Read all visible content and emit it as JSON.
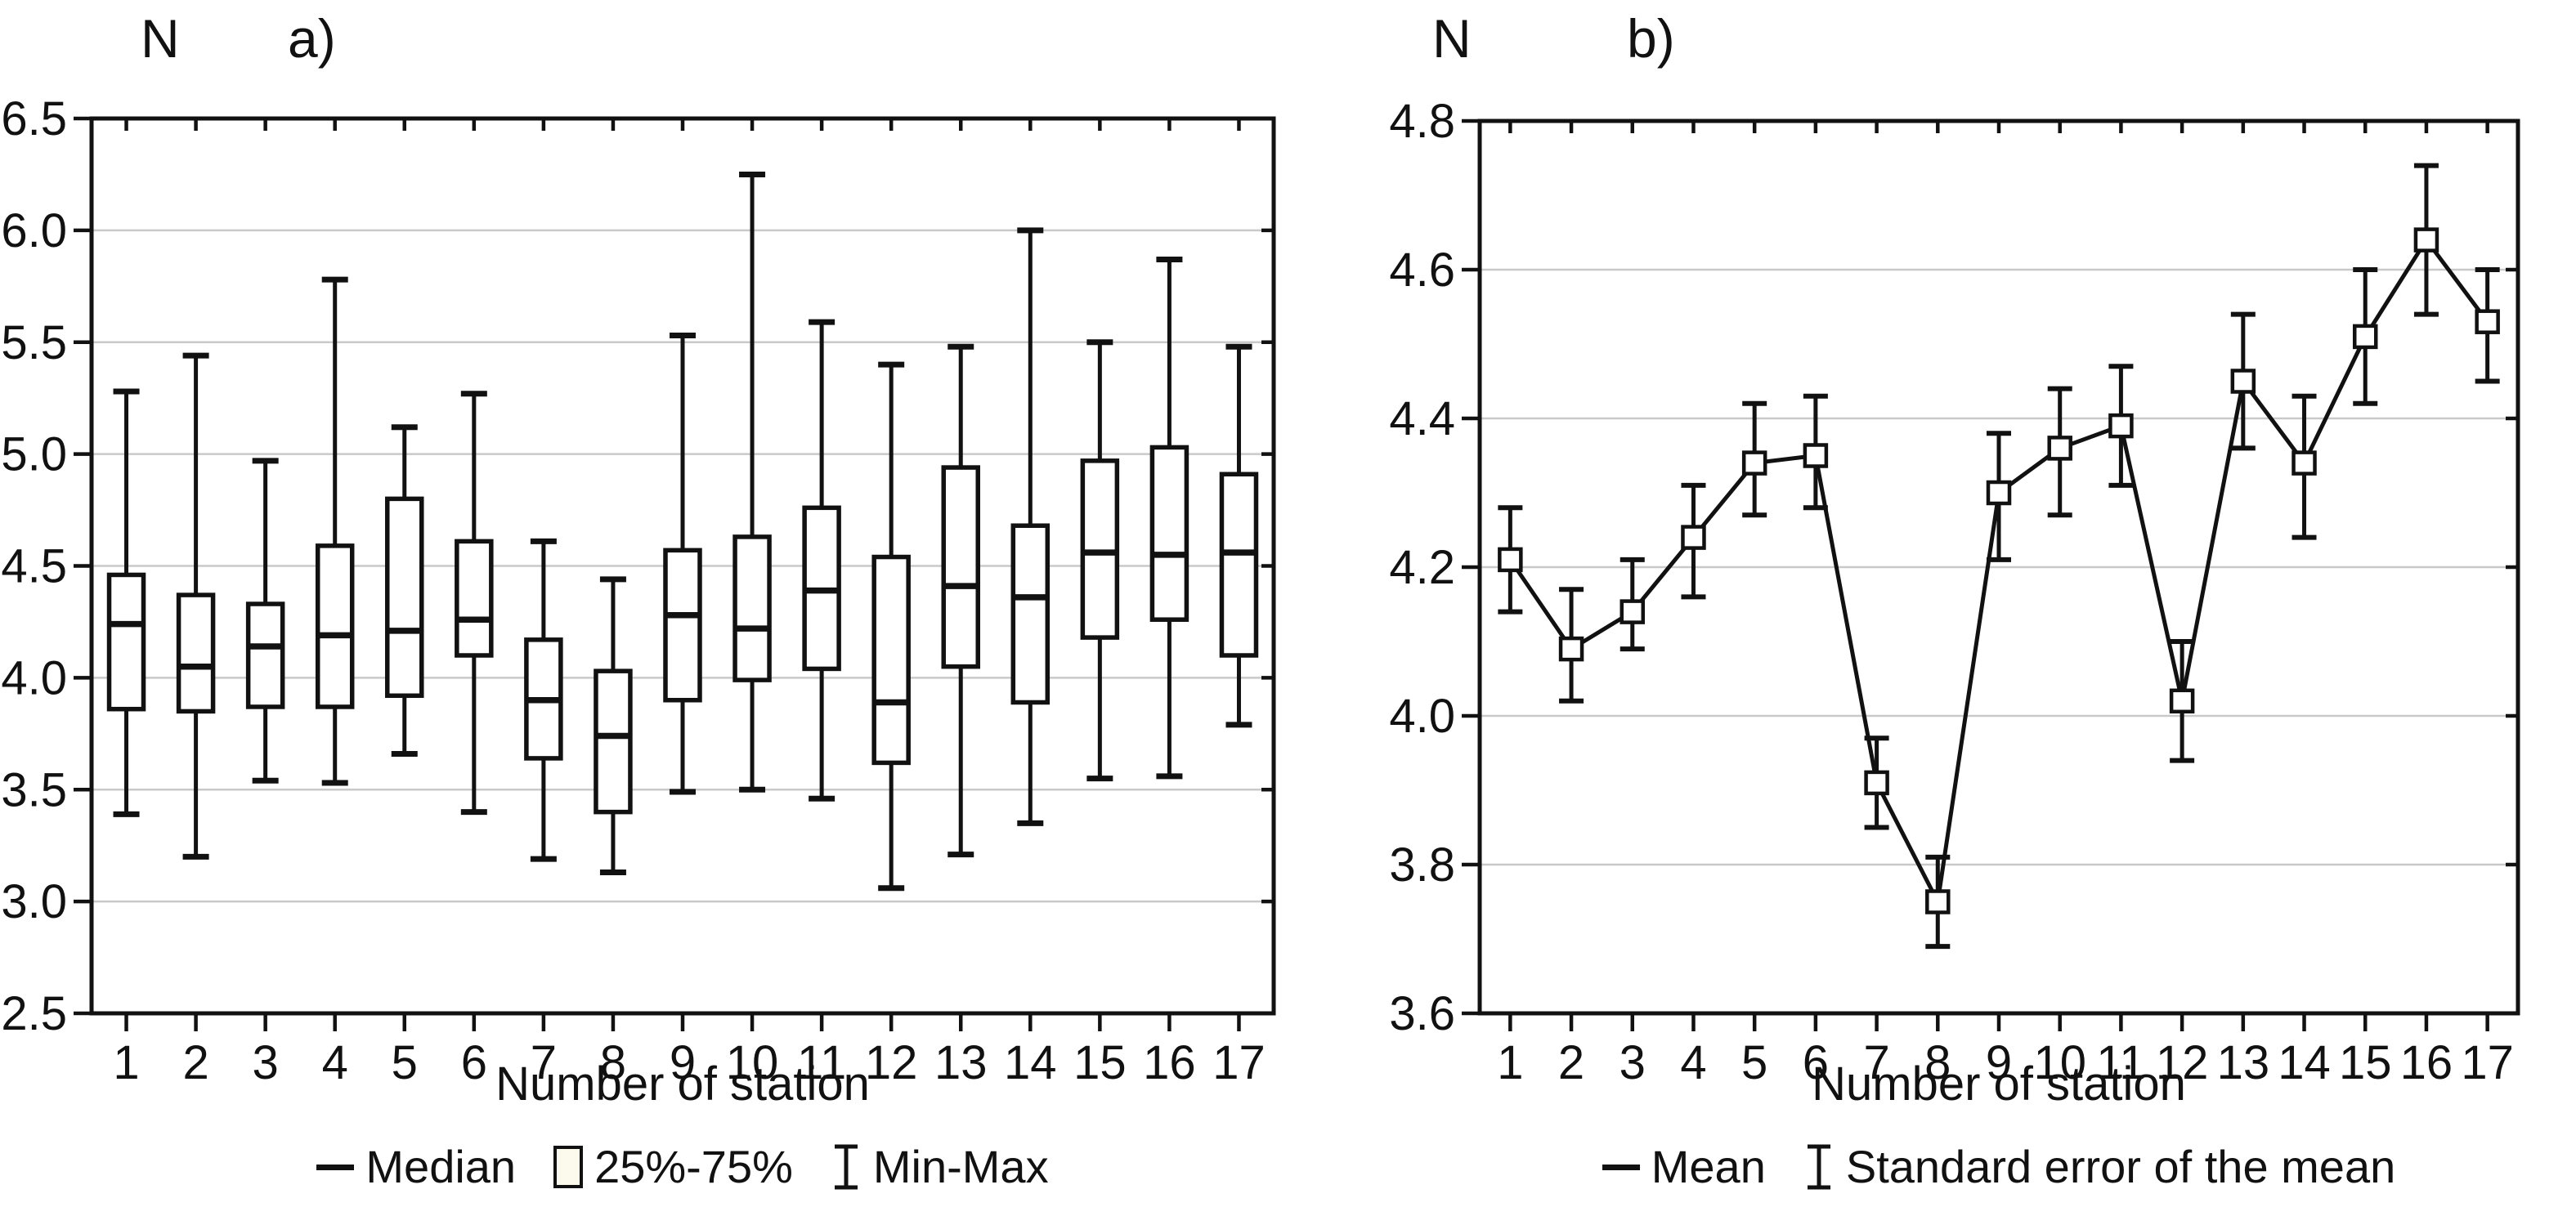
{
  "colors": {
    "stroke": "#111111",
    "grid": "#c9c9c9",
    "background": "#ffffff",
    "box_fill": "#ffffff",
    "legend_box_fill": "#fbfaec"
  },
  "chart_data": [
    {
      "id": "a",
      "type": "box",
      "panel_label": "a)",
      "ylabel": "N",
      "xlabel": "Number of station",
      "ylim": [
        2.5,
        6.5
      ],
      "y_ticks": [
        6.5,
        6.0,
        5.5,
        5.0,
        4.5,
        4.0,
        3.5,
        3.0,
        2.5
      ],
      "grid": "horizontal",
      "categories": [
        1,
        2,
        3,
        4,
        5,
        6,
        7,
        8,
        9,
        10,
        11,
        12,
        13,
        14,
        15,
        16,
        17
      ],
      "stations": [
        {
          "station": 1,
          "min": 3.39,
          "q1": 3.86,
          "median": 4.24,
          "q3": 4.46,
          "max": 5.28
        },
        {
          "station": 2,
          "min": 3.2,
          "q1": 3.85,
          "median": 4.05,
          "q3": 4.37,
          "max": 5.44
        },
        {
          "station": 3,
          "min": 3.54,
          "q1": 3.87,
          "median": 4.14,
          "q3": 4.33,
          "max": 4.97
        },
        {
          "station": 4,
          "min": 3.53,
          "q1": 3.87,
          "median": 4.19,
          "q3": 4.59,
          "max": 5.78
        },
        {
          "station": 5,
          "min": 3.66,
          "q1": 3.92,
          "median": 4.21,
          "q3": 4.8,
          "max": 5.12
        },
        {
          "station": 6,
          "min": 3.4,
          "q1": 4.1,
          "median": 4.26,
          "q3": 4.61,
          "max": 5.27
        },
        {
          "station": 7,
          "min": 3.19,
          "q1": 3.64,
          "median": 3.9,
          "q3": 4.17,
          "max": 4.61
        },
        {
          "station": 8,
          "min": 3.13,
          "q1": 3.4,
          "median": 3.74,
          "q3": 4.03,
          "max": 4.44
        },
        {
          "station": 9,
          "min": 3.49,
          "q1": 3.9,
          "median": 4.28,
          "q3": 4.57,
          "max": 5.53
        },
        {
          "station": 10,
          "min": 3.5,
          "q1": 3.99,
          "median": 4.22,
          "q3": 4.63,
          "max": 6.25
        },
        {
          "station": 11,
          "min": 3.46,
          "q1": 4.04,
          "median": 4.39,
          "q3": 4.76,
          "max": 5.59
        },
        {
          "station": 12,
          "min": 3.06,
          "q1": 3.62,
          "median": 3.89,
          "q3": 4.54,
          "max": 5.4
        },
        {
          "station": 13,
          "min": 3.21,
          "q1": 4.05,
          "median": 4.41,
          "q3": 4.94,
          "max": 5.48
        },
        {
          "station": 14,
          "min": 3.35,
          "q1": 3.89,
          "median": 4.36,
          "q3": 4.68,
          "max": 6.0
        },
        {
          "station": 15,
          "min": 3.55,
          "q1": 4.18,
          "median": 4.56,
          "q3": 4.97,
          "max": 5.5
        },
        {
          "station": 16,
          "min": 3.56,
          "q1": 4.26,
          "median": 4.55,
          "q3": 5.03,
          "max": 5.87
        },
        {
          "station": 17,
          "min": 3.79,
          "q1": 4.1,
          "median": 4.56,
          "q3": 4.91,
          "max": 5.48
        }
      ],
      "legend": [
        {
          "symbol": "dash",
          "label": "Median"
        },
        {
          "symbol": "box",
          "label": "25%-75%"
        },
        {
          "symbol": "ibeam",
          "label": "Min-Max"
        }
      ]
    },
    {
      "id": "b",
      "type": "line",
      "panel_label": "b)",
      "ylabel": "N",
      "xlabel": "Number of station",
      "ylim": [
        3.6,
        4.8
      ],
      "y_ticks": [
        4.8,
        4.6,
        4.4,
        4.2,
        4.0,
        3.8,
        3.6
      ],
      "grid": "horizontal",
      "categories": [
        1,
        2,
        3,
        4,
        5,
        6,
        7,
        8,
        9,
        10,
        11,
        12,
        13,
        14,
        15,
        16,
        17
      ],
      "points": [
        {
          "station": 1,
          "mean": 4.21,
          "se_low": 4.14,
          "se_high": 4.28
        },
        {
          "station": 2,
          "mean": 4.09,
          "se_low": 4.02,
          "se_high": 4.17
        },
        {
          "station": 3,
          "mean": 4.14,
          "se_low": 4.09,
          "se_high": 4.21
        },
        {
          "station": 4,
          "mean": 4.24,
          "se_low": 4.16,
          "se_high": 4.31
        },
        {
          "station": 5,
          "mean": 4.34,
          "se_low": 4.27,
          "se_high": 4.42
        },
        {
          "station": 6,
          "mean": 4.35,
          "se_low": 4.28,
          "se_high": 4.43
        },
        {
          "station": 7,
          "mean": 3.91,
          "se_low": 3.85,
          "se_high": 3.97
        },
        {
          "station": 8,
          "mean": 3.75,
          "se_low": 3.69,
          "se_high": 3.81
        },
        {
          "station": 9,
          "mean": 4.3,
          "se_low": 4.21,
          "se_high": 4.38
        },
        {
          "station": 10,
          "mean": 4.36,
          "se_low": 4.27,
          "se_high": 4.44
        },
        {
          "station": 11,
          "mean": 4.39,
          "se_low": 4.31,
          "se_high": 4.47
        },
        {
          "station": 12,
          "mean": 4.02,
          "se_low": 3.94,
          "se_high": 4.1
        },
        {
          "station": 13,
          "mean": 4.45,
          "se_low": 4.36,
          "se_high": 4.54
        },
        {
          "station": 14,
          "mean": 4.34,
          "se_low": 4.24,
          "se_high": 4.43
        },
        {
          "station": 15,
          "mean": 4.51,
          "se_low": 4.42,
          "se_high": 4.6
        },
        {
          "station": 16,
          "mean": 4.64,
          "se_low": 4.54,
          "se_high": 4.74
        },
        {
          "station": 17,
          "mean": 4.53,
          "se_low": 4.45,
          "se_high": 4.6
        }
      ],
      "legend": [
        {
          "symbol": "dash",
          "label": "Mean"
        },
        {
          "symbol": "ibeam",
          "label": "Standard error of the mean"
        }
      ]
    }
  ]
}
